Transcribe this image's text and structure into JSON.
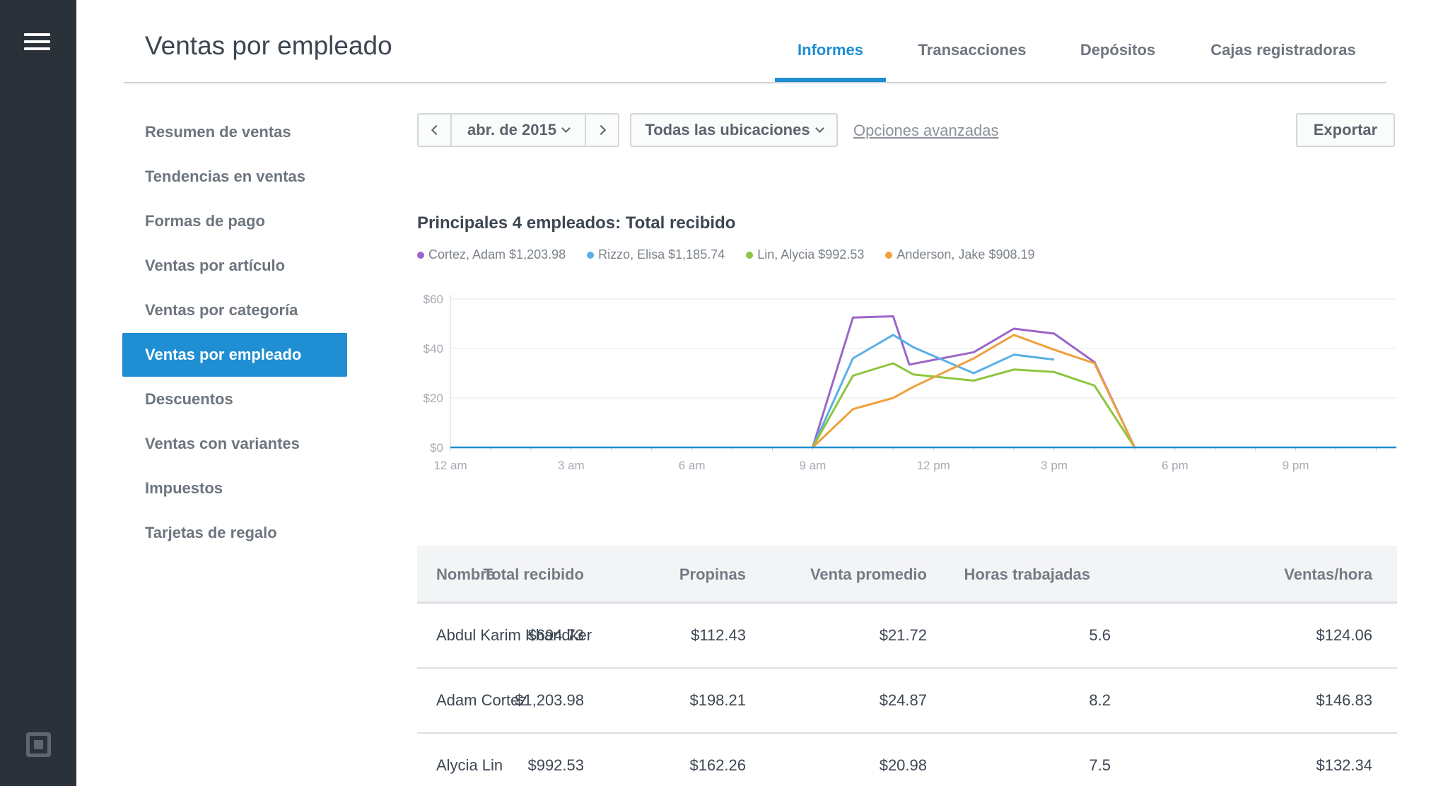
{
  "page": {
    "title": "Ventas por empleado"
  },
  "top_tabs": [
    {
      "label": "Informes",
      "active": true
    },
    {
      "label": "Transacciones",
      "active": false
    },
    {
      "label": "Depósitos",
      "active": false
    },
    {
      "label": "Cajas registradoras",
      "active": false
    }
  ],
  "sidebar": {
    "items": [
      {
        "label": "Resumen de ventas",
        "active": false
      },
      {
        "label": "Tendencias en ventas",
        "active": false
      },
      {
        "label": "Formas de pago",
        "active": false
      },
      {
        "label": "Ventas por artículo",
        "active": false
      },
      {
        "label": "Ventas por categoría",
        "active": false
      },
      {
        "label": "Ventas por empleado",
        "active": true
      },
      {
        "label": "Descuentos",
        "active": false
      },
      {
        "label": "Ventas con variantes",
        "active": false
      },
      {
        "label": "Impuestos",
        "active": false
      },
      {
        "label": "Tarjetas de regalo",
        "active": false
      }
    ]
  },
  "toolbar": {
    "date_label": "abr. de 2015",
    "location_label": "Todas las ubicaciones",
    "advanced_label": "Opciones avanzadas",
    "export_label": "Exportar"
  },
  "colors": {
    "accent": "#1f8ed3",
    "rail": "#2b3138"
  },
  "chart_data": {
    "type": "line",
    "title": "Principales 4 empleados: Total recibido",
    "x_ticks": [
      "12 am",
      "3 am",
      "6 am",
      "9 am",
      "12 pm",
      "3 pm",
      "6 pm",
      "9 pm"
    ],
    "y_ticks": [
      "$0",
      "$20",
      "$40",
      "$60"
    ],
    "xlim": [
      0,
      23.5
    ],
    "ylim": [
      0,
      60
    ],
    "grid": true,
    "legend_position": "top-left",
    "baseline_color": "#1f8ed3",
    "series": [
      {
        "name": "Cortez, Adam $1,203.98",
        "color": "#9b66c7",
        "points": [
          [
            9,
            0
          ],
          [
            10,
            52.5
          ],
          [
            11,
            53
          ],
          [
            11.4,
            33.5
          ],
          [
            13,
            38.5
          ],
          [
            14,
            48
          ],
          [
            15,
            46
          ],
          [
            16,
            34.5
          ],
          [
            17,
            0
          ]
        ]
      },
      {
        "name": "Rizzo, Elisa $1,185.74",
        "color": "#5ab0e6",
        "points": [
          [
            9,
            0
          ],
          [
            10,
            36
          ],
          [
            11,
            45.5
          ],
          [
            11.5,
            40.5
          ],
          [
            13,
            30
          ],
          [
            14,
            37.5
          ],
          [
            15,
            35.5
          ]
        ]
      },
      {
        "name": "Lin, Alycia $992.53",
        "color": "#8cc63f",
        "points": [
          [
            9,
            0
          ],
          [
            10,
            29
          ],
          [
            11,
            34
          ],
          [
            11.5,
            29.5
          ],
          [
            13,
            27
          ],
          [
            14,
            31.5
          ],
          [
            15,
            30.5
          ],
          [
            16,
            25
          ],
          [
            17,
            0
          ]
        ]
      },
      {
        "name": "Anderson, Jake $908.19",
        "color": "#f0a03c",
        "points": [
          [
            9,
            0
          ],
          [
            10,
            15.5
          ],
          [
            11,
            20
          ],
          [
            11.5,
            24.5
          ],
          [
            13,
            36
          ],
          [
            14,
            45.5
          ],
          [
            15,
            39.5
          ],
          [
            16,
            34
          ],
          [
            17,
            0
          ]
        ]
      }
    ]
  },
  "table": {
    "headers": [
      "Nombre",
      "Total recibido",
      "Propinas",
      "Venta promedio",
      "Horas trabajadas",
      "Ventas/hora"
    ],
    "rows": [
      [
        "Abdul Karim Khandker",
        "$694.73",
        "$112.43",
        "$21.72",
        "5.6",
        "$124.06"
      ],
      [
        "Adam Cortez",
        "$1,203.98",
        "$198.21",
        "$24.87",
        "8.2",
        "$146.83"
      ],
      [
        "Alycia Lin",
        "$992.53",
        "$162.26",
        "$20.98",
        "7.5",
        "$132.34"
      ]
    ]
  }
}
